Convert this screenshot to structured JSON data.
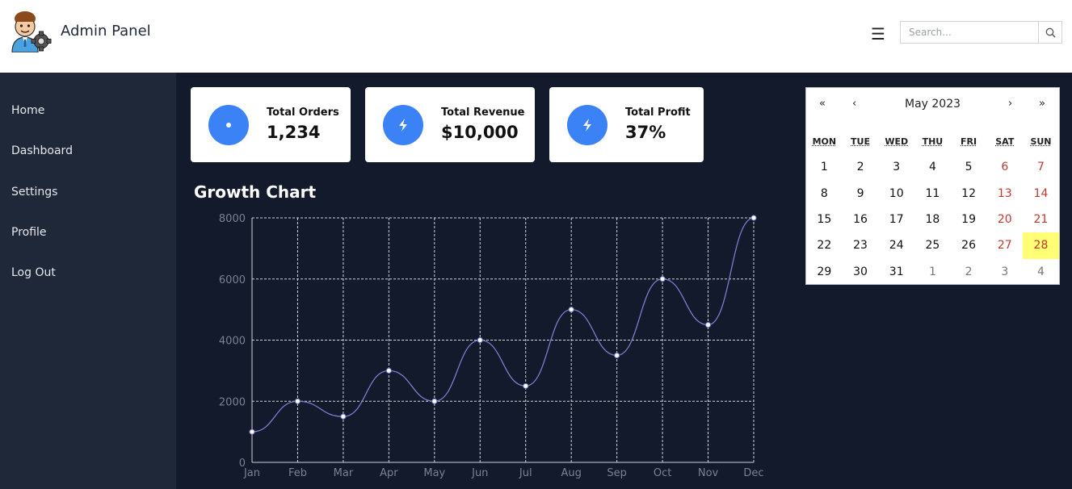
{
  "header": {
    "brand": "Admin Panel",
    "menu_icon": "hamburger-icon",
    "search_placeholder": "Search...",
    "search_icon": "search-icon"
  },
  "sidebar": {
    "items": [
      {
        "label": "Home"
      },
      {
        "label": "Dashboard"
      },
      {
        "label": "Settings"
      },
      {
        "label": "Profile"
      },
      {
        "label": "Log Out"
      }
    ]
  },
  "cards": [
    {
      "label": "Total Orders",
      "value": "1,234",
      "icon": "dot-icon"
    },
    {
      "label": "Total Revenue",
      "value": "$10,000",
      "icon": "bolt-icon"
    },
    {
      "label": "Total Profit",
      "value": "37%",
      "icon": "bolt-icon"
    }
  ],
  "chart_title": "Growth Chart",
  "chart_data": {
    "type": "line",
    "title": "Growth Chart",
    "categories": [
      "Jan",
      "Feb",
      "Mar",
      "Apr",
      "May",
      "Jun",
      "Jul",
      "Aug",
      "Sep",
      "Oct",
      "Nov",
      "Dec"
    ],
    "values": [
      1000,
      2000,
      1500,
      3000,
      2000,
      4000,
      2500,
      5000,
      3500,
      6000,
      4500,
      8000
    ],
    "ylim": [
      0,
      8000
    ],
    "yticks": [
      0,
      2000,
      4000,
      6000,
      8000
    ],
    "grid": true,
    "colors": {
      "line": "#7c7ccf",
      "point": "#ffffff",
      "grid": "#cfd3da",
      "tick": "#7b8190"
    }
  },
  "calendar": {
    "month_label": "May 2023",
    "nav": {
      "prev_year": "«",
      "prev_month": "‹",
      "next_month": "›",
      "next_year": "»"
    },
    "weekdays": [
      "MON",
      "TUE",
      "WED",
      "THU",
      "FRI",
      "SAT",
      "SUN"
    ],
    "weeks": [
      [
        "1",
        "2",
        "3",
        "4",
        "5",
        "6",
        "7"
      ],
      [
        "8",
        "9",
        "10",
        "11",
        "12",
        "13",
        "14"
      ],
      [
        "15",
        "16",
        "17",
        "18",
        "19",
        "20",
        "21"
      ],
      [
        "22",
        "23",
        "24",
        "25",
        "26",
        "27",
        "28"
      ],
      [
        "29",
        "30",
        "31",
        "1",
        "2",
        "3",
        "4"
      ]
    ],
    "today": "28",
    "colors": {
      "weekend": "#c0392b",
      "today_bg": "#ffff76"
    }
  }
}
